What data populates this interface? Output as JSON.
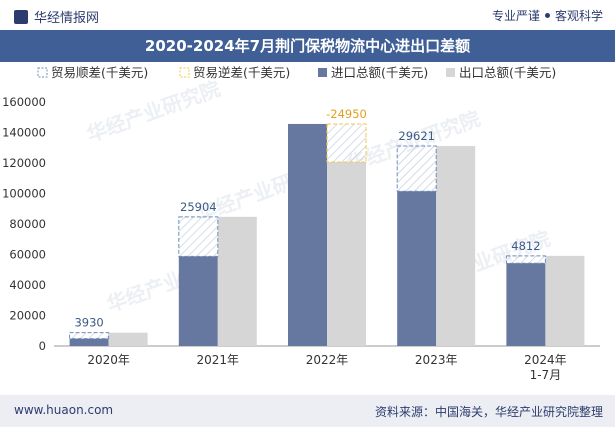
{
  "header": {
    "brand": "华经情报网",
    "tag1": "专业严谨",
    "tag2": "客观科学"
  },
  "footer": {
    "left": "www.huaon.com",
    "right": "资料来源：中国海关，华经产业研究院整理"
  },
  "watermark": "华经产业研究院",
  "colors": {
    "import": "#6677a0",
    "export": "#d6d6d6",
    "surplus_border": "#6f8db9",
    "deficit_border": "#f0c84a",
    "title_bg": "#3f5f96"
  },
  "chart_data": {
    "type": "bar",
    "title": "2020-2024年7月荆门保税物流中心进出口差额",
    "categories": [
      "2020年",
      "2021年",
      "2022年",
      "2023年",
      "2024年\n1-7月"
    ],
    "ylim": [
      0,
      160000
    ],
    "yticks": [
      0,
      20000,
      40000,
      60000,
      80000,
      100000,
      120000,
      140000,
      160000
    ],
    "legend": [
      "贸易顺差(千美元)",
      "贸易逆差(千美元)",
      "进口总额(千美元)",
      "出口总额(千美元)"
    ],
    "series": [
      {
        "name": "进口总额(千美元)",
        "values": [
          4800,
          58800,
          145600,
          101500,
          54300
        ]
      },
      {
        "name": "出口总额(千美元)",
        "values": [
          8730,
          84704,
          120650,
          131121,
          59112
        ]
      }
    ],
    "balance": [
      3930,
      25904,
      -24950,
      29621,
      4812
    ]
  }
}
